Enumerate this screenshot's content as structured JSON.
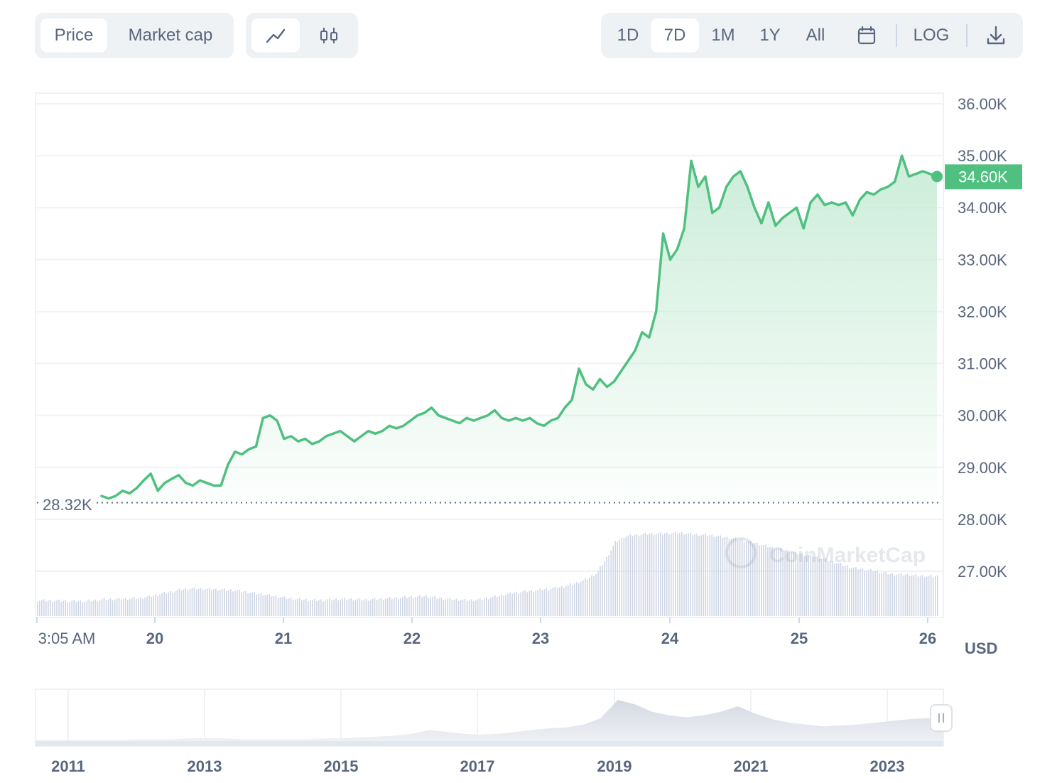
{
  "toolbar": {
    "metric_tabs": [
      {
        "label": "Price",
        "active": true
      },
      {
        "label": "Market cap",
        "active": false
      }
    ],
    "chart_type_icons": [
      "line-chart-icon",
      "candlestick-icon"
    ],
    "ranges": [
      {
        "label": "1D",
        "active": false
      },
      {
        "label": "7D",
        "active": true
      },
      {
        "label": "1M",
        "active": false
      },
      {
        "label": "1Y",
        "active": false
      },
      {
        "label": "All",
        "active": false
      }
    ],
    "calendar_icon": "calendar-icon",
    "log_label": "LOG",
    "download_icon": "download-icon"
  },
  "colors": {
    "line": "#4fc07f",
    "area_top": "#c9ecd7",
    "grid": "#eff2f5",
    "axis_text": "#58667e",
    "volume": "#cfd6e4"
  },
  "watermark": "CoinMarketCap",
  "chart_data": {
    "type": "line",
    "x_ticks": [
      "3:05 AM",
      "20",
      "21",
      "22",
      "23",
      "24",
      "25",
      "26"
    ],
    "y_ticks": [
      "36.00K",
      "35.00K",
      "34.00K",
      "33.00K",
      "32.00K",
      "31.00K",
      "30.00K",
      "29.00K",
      "28.00K",
      "27.00K"
    ],
    "ylim": [
      26000,
      36200
    ],
    "unit": "USD",
    "start_label": "28.32K",
    "start_value": 28320,
    "current_label": "34.60K",
    "current_value": 34600,
    "series": [
      {
        "values": [
          28450,
          28400,
          28450,
          28550,
          28500,
          28600,
          28750,
          28880,
          28550,
          28700,
          28780,
          28850,
          28700,
          28650,
          28750,
          28700,
          28650,
          28650,
          29050,
          29300,
          29250,
          29350,
          29400,
          29950,
          30000,
          29900,
          29550,
          29600,
          29500,
          29550,
          29450,
          29500,
          29600,
          29650,
          29700,
          29600,
          29500,
          29600,
          29700,
          29650,
          29700,
          29800,
          29750,
          29800,
          29900,
          30000,
          30050,
          30150,
          30000,
          29950,
          29900,
          29850,
          29950,
          29900,
          29950,
          30000,
          30100,
          29950,
          29900,
          29950,
          29900,
          29950,
          29850,
          29800,
          29900,
          29950,
          30150,
          30300,
          30900,
          30600,
          30500,
          30700,
          30550,
          30650,
          30850,
          31050,
          31250,
          31600,
          31500,
          32000,
          33500,
          33000,
          33200,
          33600,
          34900,
          34400,
          34600,
          33900,
          34000,
          34400,
          34600,
          34700,
          34400,
          34000,
          33700,
          34100,
          33650,
          33800,
          33900,
          34000,
          33600,
          34100,
          34250,
          34050,
          34100,
          34050,
          34100,
          33850,
          34150,
          34300,
          34250,
          34350,
          34400,
          34500,
          35000,
          34600,
          34650,
          34700,
          34650,
          34600
        ]
      }
    ],
    "volume": [
      55,
      55,
      54,
      52,
      52,
      52,
      55,
      58,
      60,
      60,
      62,
      64,
      70,
      78,
      85,
      92,
      96,
      96,
      95,
      94,
      92,
      90,
      85,
      80,
      75,
      70,
      65,
      60,
      58,
      56,
      56,
      58,
      60,
      60,
      58,
      58,
      60,
      62,
      64,
      66,
      68,
      70,
      65,
      60,
      58,
      56,
      56,
      60,
      66,
      74,
      80,
      85,
      88,
      92,
      96,
      100,
      108,
      118,
      130,
      150,
      200,
      260,
      280,
      285,
      288,
      290,
      290,
      292,
      292,
      288,
      286,
      285,
      280,
      275,
      270,
      262,
      255,
      245,
      238,
      230,
      222,
      215,
      210,
      200,
      190,
      180,
      170,
      165,
      160,
      155,
      148,
      146,
      145,
      142,
      140,
      140
    ],
    "volume_max": 300,
    "history": {
      "x_ticks": [
        "2011",
        "2013",
        "2015",
        "2017",
        "2019",
        "2021",
        "2023"
      ],
      "values": [
        1,
        1,
        1,
        1,
        1,
        1,
        2,
        2,
        2,
        3,
        3,
        3,
        2,
        2,
        2,
        2,
        2,
        3,
        3,
        4,
        5,
        6,
        8,
        12,
        10,
        8,
        7,
        8,
        10,
        12,
        14,
        15,
        18,
        25,
        45,
        40,
        32,
        28,
        26,
        28,
        32,
        38,
        30,
        24,
        20,
        18,
        16,
        17,
        18,
        20,
        22,
        24,
        25,
        26
      ]
    }
  }
}
